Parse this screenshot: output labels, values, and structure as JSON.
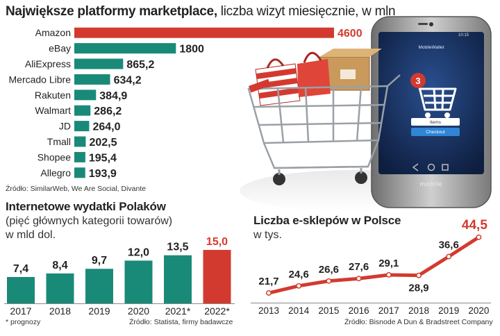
{
  "colors": {
    "teal": "#1a8a78",
    "red": "#d33a2f",
    "dark": "#222222"
  },
  "header": {
    "title_bold": "Największe platformy marketplace,",
    "title_rest": " liczba wizyt miesięcznie, w mln"
  },
  "phone": {
    "app_title": "MobileWallet",
    "badge": "3",
    "items_label": "Items",
    "checkout_label": "Checkout",
    "brand": "mobile",
    "time": "10:15"
  },
  "chart_data": [
    {
      "type": "bar",
      "orientation": "horizontal",
      "title": "Największe platformy marketplace, liczba wizyt miesięcznie, w mln",
      "categories": [
        "Amazon",
        "eBay",
        "AliExpress",
        "Mercado Libre",
        "Rakuten",
        "Walmart",
        "JD",
        "Tmall",
        "Shopee",
        "Allegro"
      ],
      "values": [
        4600,
        1800,
        865.2,
        634.2,
        384.9,
        286.2,
        264.0,
        202.5,
        195.4,
        193.9
      ],
      "value_labels": [
        "4600",
        "1800",
        "865,2",
        "634,2",
        "384,9",
        "286,2",
        "264,0",
        "202,5",
        "195,4",
        "193,9"
      ],
      "highlight_index": 0,
      "source": "Źródło: SimilarWeb, We Are Social, Divante"
    },
    {
      "type": "bar",
      "title": "Internetowe wydatki Polaków",
      "subtitle_lines": [
        "(pięć głównych kategorii towarów)",
        "w mld dol."
      ],
      "categories": [
        "2017",
        "2018",
        "2019",
        "2020",
        "2021*",
        "2022*"
      ],
      "values": [
        7.4,
        8.4,
        9.7,
        12.0,
        13.5,
        15.0
      ],
      "value_labels": [
        "7,4",
        "8,4",
        "9,7",
        "12,0",
        "13,5",
        "15,0"
      ],
      "highlight_index": 5,
      "footnote": "* prognozy",
      "source": "Źródło: Statista, firmy badawcze"
    },
    {
      "type": "line",
      "title": "Liczba e-sklepów w Polsce",
      "subtitle": "w tys.",
      "x": [
        "2013",
        "2014",
        "2015",
        "2016",
        "2017",
        "2018",
        "2019",
        "2020"
      ],
      "values": [
        21.7,
        24.6,
        26.6,
        27.6,
        29.1,
        28.9,
        36.6,
        44.5
      ],
      "value_labels": [
        "21,7",
        "24,6",
        "26,6",
        "27,6",
        "29,1",
        "28,9",
        "36,6",
        "44,5"
      ],
      "highlight_index": 7,
      "source": "Źródło: Bisnode A Dun & Bradstreet Company"
    }
  ]
}
